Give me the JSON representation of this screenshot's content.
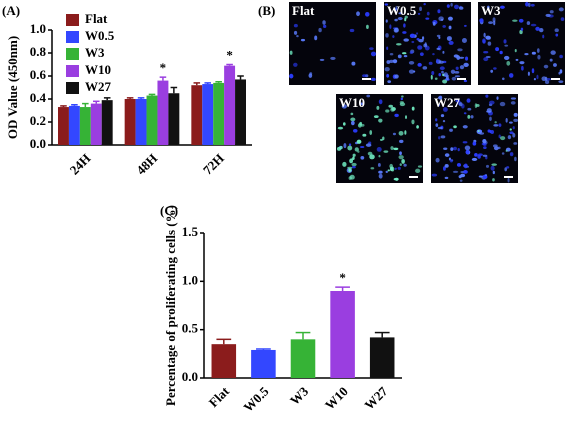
{
  "panel_labels": [
    "(A)",
    "(B)",
    "(C)"
  ],
  "images": [
    {
      "label": "Flat"
    },
    {
      "label": "W0.5"
    },
    {
      "label": "W3"
    },
    {
      "label": "W10"
    },
    {
      "label": "W27"
    }
  ],
  "chart_data": [
    {
      "type": "bar",
      "y_label": "OD Value (450nm)",
      "categories": [
        "24H",
        "48H",
        "72H"
      ],
      "series": [
        {
          "name": "Flat",
          "color": "#8b1c1c",
          "values": [
            0.33,
            0.4,
            0.52
          ],
          "errors": [
            0.01,
            0.01,
            0.02
          ]
        },
        {
          "name": "W0.5",
          "color": "#3347ff",
          "values": [
            0.34,
            0.4,
            0.53
          ],
          "errors": [
            0.01,
            0.01,
            0.01
          ]
        },
        {
          "name": "W3",
          "color": "#36b336",
          "values": [
            0.33,
            0.43,
            0.54
          ],
          "errors": [
            0.03,
            0.01,
            0.01
          ]
        },
        {
          "name": "W10",
          "color": "#9a3ee0",
          "values": [
            0.36,
            0.56,
            0.69
          ],
          "errors": [
            0.02,
            0.03,
            0.01
          ]
        },
        {
          "name": "W27",
          "color": "#111111",
          "values": [
            0.39,
            0.45,
            0.57
          ],
          "errors": [
            0.02,
            0.05,
            0.03
          ]
        }
      ],
      "ylim": [
        0,
        1.0
      ],
      "yticks": [
        {
          "value": 0,
          "label": "0.0"
        },
        0.2,
        0.4,
        0.6,
        0.8,
        {
          "value": 1.0,
          "label": "1.0"
        }
      ],
      "legend": "top-left",
      "annotations": [
        {
          "text": "*",
          "category": "48H",
          "series": "W10"
        },
        {
          "text": "*",
          "category": "72H",
          "series": "W10"
        }
      ]
    },
    {
      "type": "bar",
      "y_label": "Percentage of proliferating cells (%)",
      "categories": [
        "Flat",
        "W0.5",
        "W3",
        "W10",
        "W27"
      ],
      "values": [
        0.35,
        0.29,
        0.4,
        0.9,
        0.42
      ],
      "errors": [
        0.05,
        0.01,
        0.07,
        0.04,
        0.05
      ],
      "colors": [
        "#8b1c1c",
        "#3347ff",
        "#36b336",
        "#9a3ee0",
        "#111111"
      ],
      "ylim": [
        0,
        1.5
      ],
      "yticks": [
        {
          "value": 0,
          "label": "0.0"
        },
        0.5,
        {
          "value": 1.0,
          "label": "1.0"
        },
        1.5
      ],
      "annotations": [
        {
          "text": "*",
          "category": "W10"
        }
      ]
    }
  ]
}
